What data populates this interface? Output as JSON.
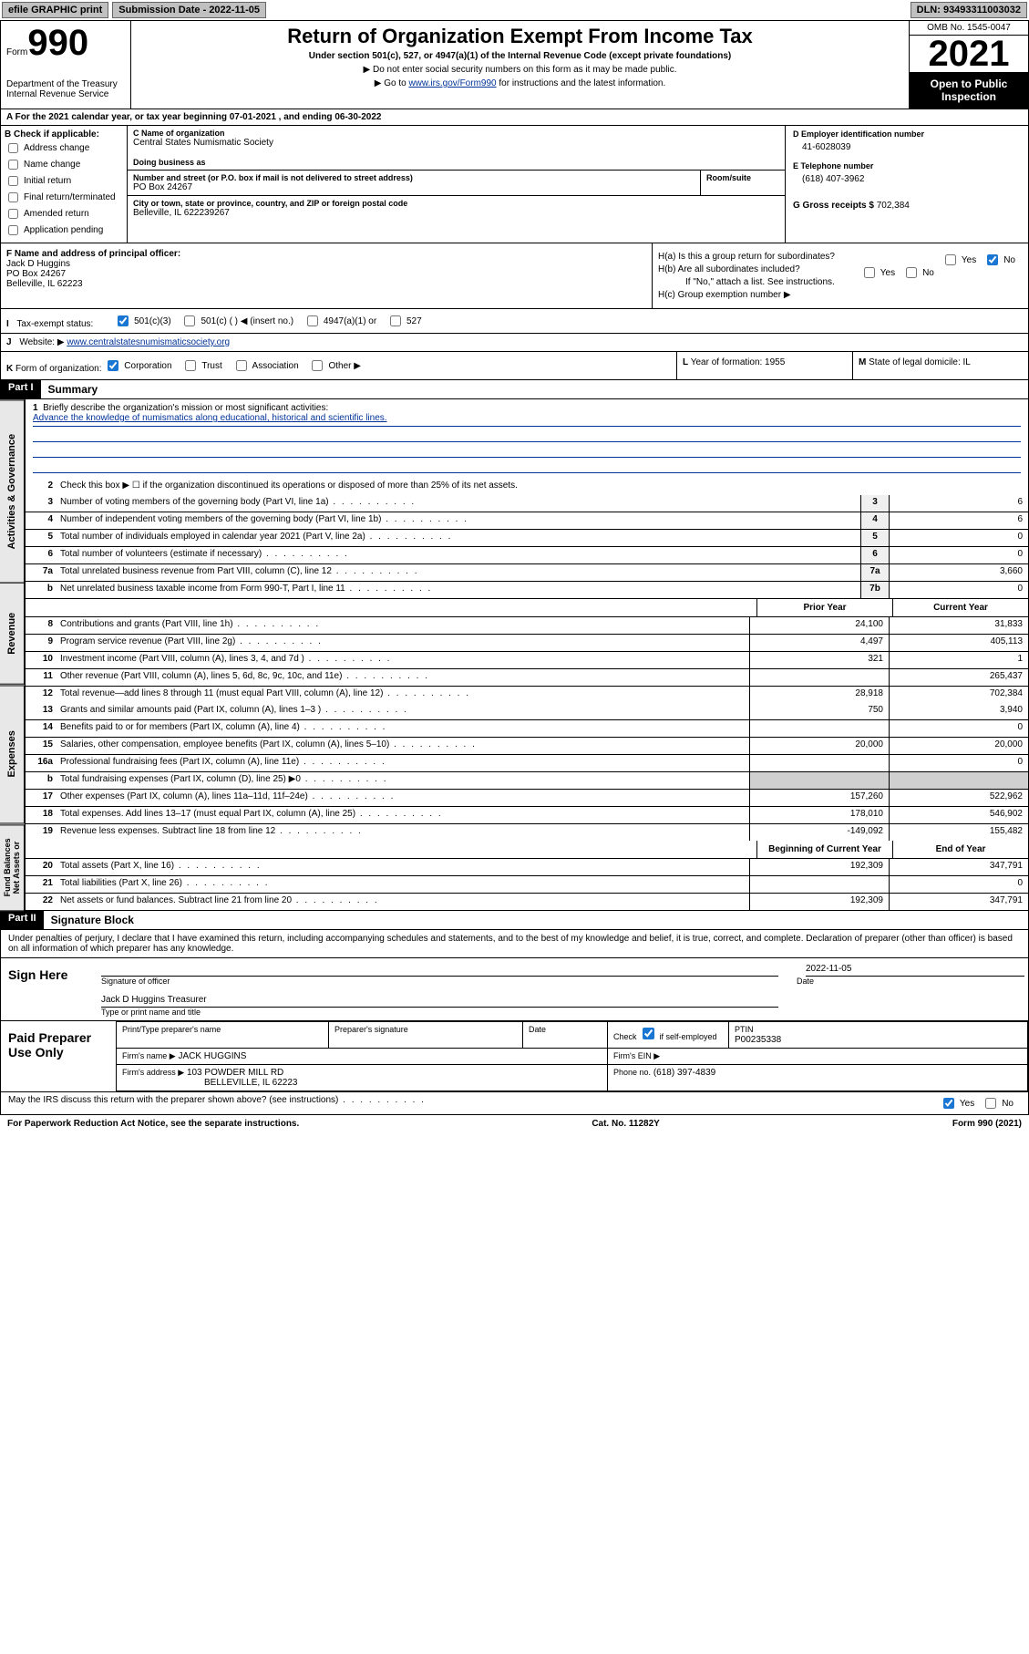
{
  "topbar": {
    "efile": "efile GRAPHIC print",
    "sub_label": "Submission Date - 2022-11-05",
    "dln": "DLN: 93493311003032"
  },
  "header": {
    "form_word": "Form",
    "form_num": "990",
    "dept": "Department of the Treasury\nInternal Revenue Service",
    "title": "Return of Organization Exempt From Income Tax",
    "sub": "Under section 501(c), 527, or 4947(a)(1) of the Internal Revenue Code (except private foundations)",
    "line1": "▶ Do not enter social security numbers on this form as it may be made public.",
    "line2_pre": "▶ Go to ",
    "line2_link": "www.irs.gov/Form990",
    "line2_post": " for instructions and the latest information.",
    "omb": "OMB No. 1545-0047",
    "year": "2021",
    "open": "Open to Public Inspection"
  },
  "row_a": "A For the 2021 calendar year, or tax year beginning 07-01-2021   , and ending 06-30-2022",
  "sec_b": {
    "label": "B Check if applicable:",
    "items": [
      "Address change",
      "Name change",
      "Initial return",
      "Final return/terminated",
      "Amended return",
      "Application pending"
    ]
  },
  "sec_c": {
    "label": "C Name of organization",
    "name": "Central States Numismatic Society",
    "dba_label": "Doing business as",
    "dba": "",
    "addr_label": "Number and street (or P.O. box if mail is not delivered to street address)",
    "room_label": "Room/suite",
    "addr": "PO Box 24267",
    "city_label": "City or town, state or province, country, and ZIP or foreign postal code",
    "city": "Belleville, IL  622239267"
  },
  "sec_d": {
    "label": "D Employer identification number",
    "ein": "41-6028039"
  },
  "sec_e": {
    "label": "E Telephone number",
    "phone": "(618) 407-3962"
  },
  "sec_g": {
    "label": "G Gross receipts $",
    "val": "702,384"
  },
  "sec_f": {
    "label": "F  Name and address of principal officer:",
    "name": "Jack D Huggins",
    "addr1": "PO Box 24267",
    "addr2": "Belleville, IL  62223"
  },
  "sec_h": {
    "a": "H(a)  Is this a group return for subordinates?",
    "b": "H(b)  Are all subordinates included?",
    "b_note": "If \"No,\" attach a list. See instructions.",
    "c": "H(c)  Group exemption number ▶",
    "yes": "Yes",
    "no": "No"
  },
  "row_i": {
    "label": "I",
    "text": "Tax-exempt status:",
    "o1": "501(c)(3)",
    "o2": "501(c) (  ) ◀ (insert no.)",
    "o3": "4947(a)(1) or",
    "o4": "527"
  },
  "row_j": {
    "label": "J",
    "text": "Website: ▶",
    "url": "www.centralstatesnumismaticsociety.org"
  },
  "row_k": {
    "label": "K",
    "text": "Form of organization:",
    "o1": "Corporation",
    "o2": "Trust",
    "o3": "Association",
    "o4": "Other ▶"
  },
  "row_l": {
    "label": "L",
    "text": "Year of formation: 1955"
  },
  "row_m": {
    "label": "M",
    "text": "State of legal domicile: IL"
  },
  "part1": {
    "num": "Part I",
    "title": "Summary"
  },
  "summary": {
    "tab1": "Activities & Governance",
    "tab2": "Revenue",
    "tab3": "Expenses",
    "tab4": "Net Assets or Fund Balances",
    "q1": "Briefly describe the organization's mission or most significant activities:",
    "q1_ans": "Advance the knowledge of numismatics along educational, historical and scientific lines.",
    "q2": "Check this box ▶ ☐  if the organization discontinued its operations or disposed of more than 25% of its net assets.",
    "lines": [
      {
        "n": "3",
        "t": "Number of voting members of the governing body (Part VI, line 1a)",
        "box": "3",
        "v": "6"
      },
      {
        "n": "4",
        "t": "Number of independent voting members of the governing body (Part VI, line 1b)",
        "box": "4",
        "v": "6"
      },
      {
        "n": "5",
        "t": "Total number of individuals employed in calendar year 2021 (Part V, line 2a)",
        "box": "5",
        "v": "0"
      },
      {
        "n": "6",
        "t": "Total number of volunteers (estimate if necessary)",
        "box": "6",
        "v": "0"
      },
      {
        "n": "7a",
        "t": "Total unrelated business revenue from Part VIII, column (C), line 12",
        "box": "7a",
        "v": "3,660"
      },
      {
        "n": "b",
        "t": "Net unrelated business taxable income from Form 990-T, Part I, line 11",
        "box": "7b",
        "v": "0"
      }
    ],
    "hdr_prior": "Prior Year",
    "hdr_current": "Current Year",
    "rev": [
      {
        "n": "8",
        "t": "Contributions and grants (Part VIII, line 1h)",
        "p": "24,100",
        "c": "31,833"
      },
      {
        "n": "9",
        "t": "Program service revenue (Part VIII, line 2g)",
        "p": "4,497",
        "c": "405,113"
      },
      {
        "n": "10",
        "t": "Investment income (Part VIII, column (A), lines 3, 4, and 7d )",
        "p": "321",
        "c": "1"
      },
      {
        "n": "11",
        "t": "Other revenue (Part VIII, column (A), lines 5, 6d, 8c, 9c, 10c, and 11e)",
        "p": "",
        "c": "265,437"
      },
      {
        "n": "12",
        "t": "Total revenue—add lines 8 through 11 (must equal Part VIII, column (A), line 12)",
        "p": "28,918",
        "c": "702,384"
      }
    ],
    "exp": [
      {
        "n": "13",
        "t": "Grants and similar amounts paid (Part IX, column (A), lines 1–3 )",
        "p": "750",
        "c": "3,940"
      },
      {
        "n": "14",
        "t": "Benefits paid to or for members (Part IX, column (A), line 4)",
        "p": "",
        "c": "0"
      },
      {
        "n": "15",
        "t": "Salaries, other compensation, employee benefits (Part IX, column (A), lines 5–10)",
        "p": "20,000",
        "c": "20,000"
      },
      {
        "n": "16a",
        "t": "Professional fundraising fees (Part IX, column (A), line 11e)",
        "p": "",
        "c": "0"
      },
      {
        "n": "b",
        "t": "Total fundraising expenses (Part IX, column (D), line 25) ▶0",
        "p": "",
        "c": "",
        "shaded": true
      },
      {
        "n": "17",
        "t": "Other expenses (Part IX, column (A), lines 11a–11d, 11f–24e)",
        "p": "157,260",
        "c": "522,962"
      },
      {
        "n": "18",
        "t": "Total expenses. Add lines 13–17 (must equal Part IX, column (A), line 25)",
        "p": "178,010",
        "c": "546,902"
      },
      {
        "n": "19",
        "t": "Revenue less expenses. Subtract line 18 from line 12",
        "p": "-149,092",
        "c": "155,482"
      }
    ],
    "hdr_begin": "Beginning of Current Year",
    "hdr_end": "End of Year",
    "net": [
      {
        "n": "20",
        "t": "Total assets (Part X, line 16)",
        "p": "192,309",
        "c": "347,791"
      },
      {
        "n": "21",
        "t": "Total liabilities (Part X, line 26)",
        "p": "",
        "c": "0"
      },
      {
        "n": "22",
        "t": "Net assets or fund balances. Subtract line 21 from line 20",
        "p": "192,309",
        "c": "347,791"
      }
    ]
  },
  "part2": {
    "num": "Part II",
    "title": "Signature Block"
  },
  "sig": {
    "decl": "Under penalties of perjury, I declare that I have examined this return, including accompanying schedules and statements, and to the best of my knowledge and belief, it is true, correct, and complete. Declaration of preparer (other than officer) is based on all information of which preparer has any knowledge.",
    "sign_here": "Sign Here",
    "sig_officer": "Signature of officer",
    "date": "Date",
    "date_val": "2022-11-05",
    "name": "Jack D Huggins  Treasurer",
    "name_label": "Type or print name and title",
    "paid": "Paid Preparer Use Only",
    "prep_name_label": "Print/Type preparer's name",
    "prep_sig_label": "Preparer's signature",
    "prep_date": "Date",
    "check_label": "Check ☑ if self-employed",
    "ptin_label": "PTIN",
    "ptin": "P00235338",
    "firm_name_label": "Firm's name  ▶",
    "firm_name": "JACK HUGGINS",
    "firm_ein_label": "Firm's EIN ▶",
    "firm_addr_label": "Firm's address ▶",
    "firm_addr1": "103 POWDER MILL RD",
    "firm_addr2": "BELLEVILLE, IL  62223",
    "phone_label": "Phone no.",
    "phone": "(618) 397-4839",
    "discuss": "May the IRS discuss this return with the preparer shown above? (see instructions)",
    "yes": "Yes",
    "no": "No"
  },
  "footer": {
    "l": "For Paperwork Reduction Act Notice, see the separate instructions.",
    "c": "Cat. No. 11282Y",
    "r": "Form 990 (2021)"
  }
}
